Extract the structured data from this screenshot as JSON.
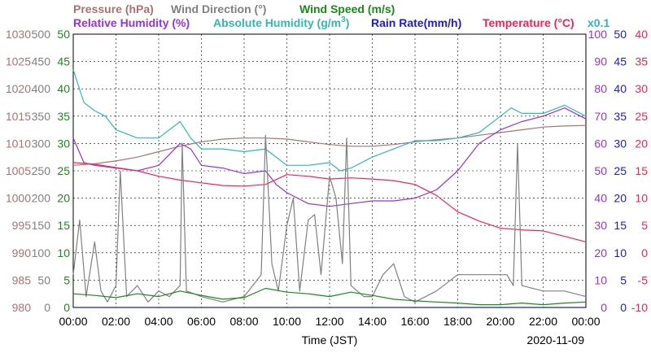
{
  "chart_data": {
    "type": "line",
    "legend": {
      "pressure": "Pressure (hPa)",
      "wind_direction": "Wind Direction (°)",
      "wind_speed": "Wind Speed (m/s)",
      "relative_humidity": "Relative Humidity (%)",
      "absolute_humidity_pre": "Absolute Humidity (g/m",
      "absolute_humidity_sup": "3",
      "absolute_humidity_post": ")",
      "rain_rate": "Rain Rate(mm/h)",
      "temperature": "Temperature (°C)",
      "abs_humidity_scale": "x0.1"
    },
    "xlabel": "Time (JST)",
    "date": "2020-11-09",
    "x_ticks": [
      "00:00",
      "02:00",
      "04:00",
      "06:00",
      "08:00",
      "10:00",
      "12:00",
      "14:00",
      "16:00",
      "18:00",
      "20:00",
      "22:00",
      "00:00"
    ],
    "left_axes": [
      {
        "name": "pressure",
        "ticks": [
          "1030",
          "1025",
          "1020",
          "1015",
          "1010",
          "1005",
          "1000",
          "995",
          "990",
          "985",
          "980"
        ],
        "range": [
          980,
          1030
        ]
      },
      {
        "name": "wind_direction",
        "ticks": [
          "500",
          "450",
          "400",
          "350",
          "300",
          "250",
          "200",
          "150",
          "100",
          "50",
          "0"
        ],
        "range": [
          0,
          500
        ]
      },
      {
        "name": "wind_speed",
        "ticks": [
          "50",
          "45",
          "40",
          "35",
          "30",
          "25",
          "20",
          "15",
          "10",
          "5",
          "0"
        ],
        "range": [
          0,
          50
        ]
      }
    ],
    "right_axes": [
      {
        "name": "relative_humidity",
        "ticks": [
          "100",
          "90",
          "80",
          "70",
          "60",
          "50",
          "40",
          "30",
          "20",
          "10",
          "0"
        ],
        "range": [
          0,
          100
        ]
      },
      {
        "name": "rain_rate",
        "ticks": [
          "50",
          "45",
          "40",
          "35",
          "30",
          "25",
          "20",
          "15",
          "10",
          "5",
          "0"
        ],
        "range": [
          0,
          50
        ]
      },
      {
        "name": "temperature",
        "ticks": [
          "40",
          "35",
          "30",
          "25",
          "20",
          "15",
          "10",
          "5",
          "0",
          "-5",
          "-10"
        ],
        "range": [
          -10,
          40
        ]
      }
    ],
    "x_range_hours": [
      0,
      24
    ],
    "series": [
      {
        "name": "Pressure (hPa)",
        "axis": "pressure",
        "color": "#b07070",
        "x": [
          0,
          1,
          2,
          3,
          4,
          5,
          6,
          7,
          8,
          9,
          10,
          11,
          12,
          13,
          14,
          15,
          16,
          17,
          18,
          19,
          20,
          21,
          22,
          23,
          24
        ],
        "values": [
          1006,
          1006.3,
          1006.8,
          1007.5,
          1008.5,
          1009.5,
          1010.3,
          1010.8,
          1011,
          1011,
          1010.8,
          1010.3,
          1009.8,
          1009.5,
          1009.5,
          1009.8,
          1010.3,
          1010.7,
          1011,
          1011.5,
          1012,
          1012.5,
          1013,
          1013.2,
          1013.3
        ]
      },
      {
        "name": "Absolute Humidity (g/m3) x0.1",
        "axis": "relative_humidity",
        "color": "#30b8b8",
        "x": [
          0,
          0.5,
          1,
          1.5,
          2,
          3,
          4,
          5,
          5.5,
          6,
          7,
          8,
          9,
          10,
          11,
          12,
          12.5,
          13,
          14,
          15,
          16,
          17,
          18,
          19,
          20,
          20.5,
          21,
          22,
          23,
          24
        ],
        "values": [
          87,
          75,
          72,
          70,
          65,
          62,
          62,
          68,
          62,
          58,
          58,
          57,
          58,
          52,
          52,
          53,
          50,
          51,
          55,
          58,
          61,
          61,
          62,
          64,
          70,
          73,
          71,
          71,
          74,
          70
        ]
      },
      {
        "name": "Relative Humidity (%)",
        "axis": "relative_humidity",
        "color": "#9a30e0",
        "x": [
          0,
          0.5,
          1,
          2,
          3,
          4,
          5,
          5.5,
          6,
          7,
          8,
          9,
          9.5,
          10,
          11,
          12,
          13,
          14,
          15,
          16,
          17,
          18,
          19,
          20,
          21,
          22,
          23,
          24
        ],
        "values": [
          62,
          53,
          52,
          51,
          50,
          52,
          60,
          58,
          52,
          51,
          49,
          50,
          45,
          42,
          38,
          37,
          38,
          39,
          39,
          40,
          43,
          50,
          60,
          65,
          68,
          70,
          73,
          69
        ]
      },
      {
        "name": "Temperature (°C)",
        "axis": "temperature",
        "color": "#ff2050",
        "x": [
          0,
          1,
          2,
          3,
          4,
          5,
          6,
          7,
          8,
          9,
          10,
          11,
          12,
          13,
          14,
          15,
          16,
          17,
          18,
          19,
          20,
          21,
          22,
          23,
          24
        ],
        "values": [
          16.5,
          16.2,
          15.6,
          15,
          14,
          13.3,
          12.8,
          12.3,
          12.2,
          12.5,
          14.3,
          14,
          13.5,
          13.7,
          13.5,
          13.2,
          12.5,
          10.5,
          7.5,
          5.8,
          4.5,
          4.2,
          4,
          3,
          2
        ]
      },
      {
        "name": "Wind Direction (°)",
        "axis": "wind_direction",
        "color": "#808080",
        "x": [
          0,
          0.3,
          0.6,
          1,
          1.3,
          1.6,
          2,
          2.2,
          2.5,
          3,
          3.5,
          4,
          4.5,
          5,
          5.1,
          5.3,
          6,
          7,
          8,
          8.8,
          9,
          9.3,
          9.6,
          10,
          10.3,
          10.6,
          11,
          11.3,
          11.6,
          12,
          12.3,
          12.6,
          12.8,
          13,
          13.3,
          13.6,
          14,
          14.5,
          15,
          15.5,
          16,
          17,
          18,
          19,
          20,
          20.3,
          20.6,
          20.8,
          21,
          22,
          23,
          24
        ],
        "values": [
          60,
          160,
          20,
          120,
          30,
          10,
          40,
          250,
          20,
          40,
          10,
          30,
          20,
          40,
          300,
          30,
          20,
          10,
          20,
          60,
          315,
          80,
          30,
          150,
          200,
          30,
          160,
          170,
          60,
          240,
          200,
          80,
          310,
          40,
          30,
          20,
          20,
          60,
          80,
          20,
          10,
          30,
          60,
          60,
          60,
          60,
          40,
          300,
          40,
          30,
          30,
          20
        ]
      },
      {
        "name": "Wind Speed (m/s)",
        "axis": "wind_speed",
        "color": "#1a8a1a",
        "x": [
          0,
          1,
          2,
          3,
          4,
          5,
          6,
          7,
          8,
          9,
          10,
          11,
          12,
          13,
          14,
          15,
          16,
          17,
          18,
          19,
          20,
          21,
          22,
          23,
          24
        ],
        "values": [
          2.5,
          2.2,
          1.8,
          2.5,
          2.0,
          3.0,
          2.2,
          1.5,
          1.8,
          3.5,
          2.8,
          2.5,
          2.0,
          2.8,
          2.2,
          1.5,
          1.2,
          1.0,
          0.8,
          0.5,
          0.5,
          0.8,
          0.5,
          0.8,
          1.0
        ]
      },
      {
        "name": "Rain Rate(mm/h)",
        "axis": "rain_rate",
        "color": "#1a1ae0",
        "x": [
          0,
          24
        ],
        "values": [
          0,
          0
        ]
      }
    ],
    "grid": true
  }
}
